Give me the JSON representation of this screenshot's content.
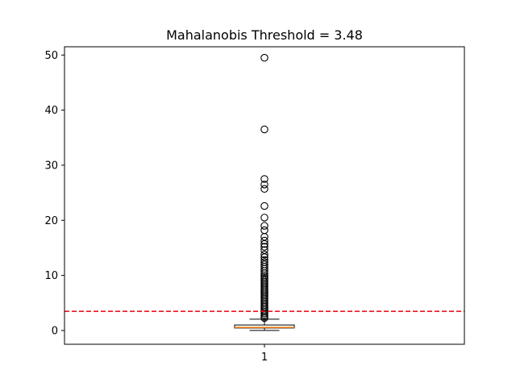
{
  "chart_data": {
    "type": "box",
    "title": "Mahalanobis Threshold = 3.48",
    "xlabel": "",
    "ylabel": "",
    "categories": [
      "1"
    ],
    "ylim": [
      -2.5,
      51.5
    ],
    "yticks": [
      0,
      10,
      20,
      30,
      40,
      50
    ],
    "grid": false,
    "box": {
      "whisker_low": 0.0,
      "q1": 0.45,
      "median": 0.55,
      "q3": 1.0,
      "whisker_high": 2.05
    },
    "threshold": {
      "value": 3.48,
      "color": "#e8000b",
      "style": "dashed"
    },
    "outliers": [
      49.5,
      36.5,
      27.5,
      26.5,
      25.7,
      22.6,
      20.5,
      19.0,
      18.2,
      17.0,
      16.3,
      15.7,
      15.2,
      14.6,
      13.8,
      13.3,
      12.8,
      12.4,
      12.0,
      11.6,
      11.2,
      10.8,
      10.4,
      10.0,
      9.7,
      9.4,
      9.1,
      8.8,
      8.5,
      8.2,
      7.9,
      7.6,
      7.3,
      7.0,
      6.7,
      6.4,
      6.1,
      5.8,
      5.5,
      5.2,
      4.9,
      4.6,
      4.3,
      4.0,
      3.7,
      3.4,
      3.1,
      2.8,
      2.5,
      2.25
    ],
    "colors": {
      "median": "#ff7f0e",
      "box": "#000000",
      "outlier_edge": "#000000"
    }
  }
}
